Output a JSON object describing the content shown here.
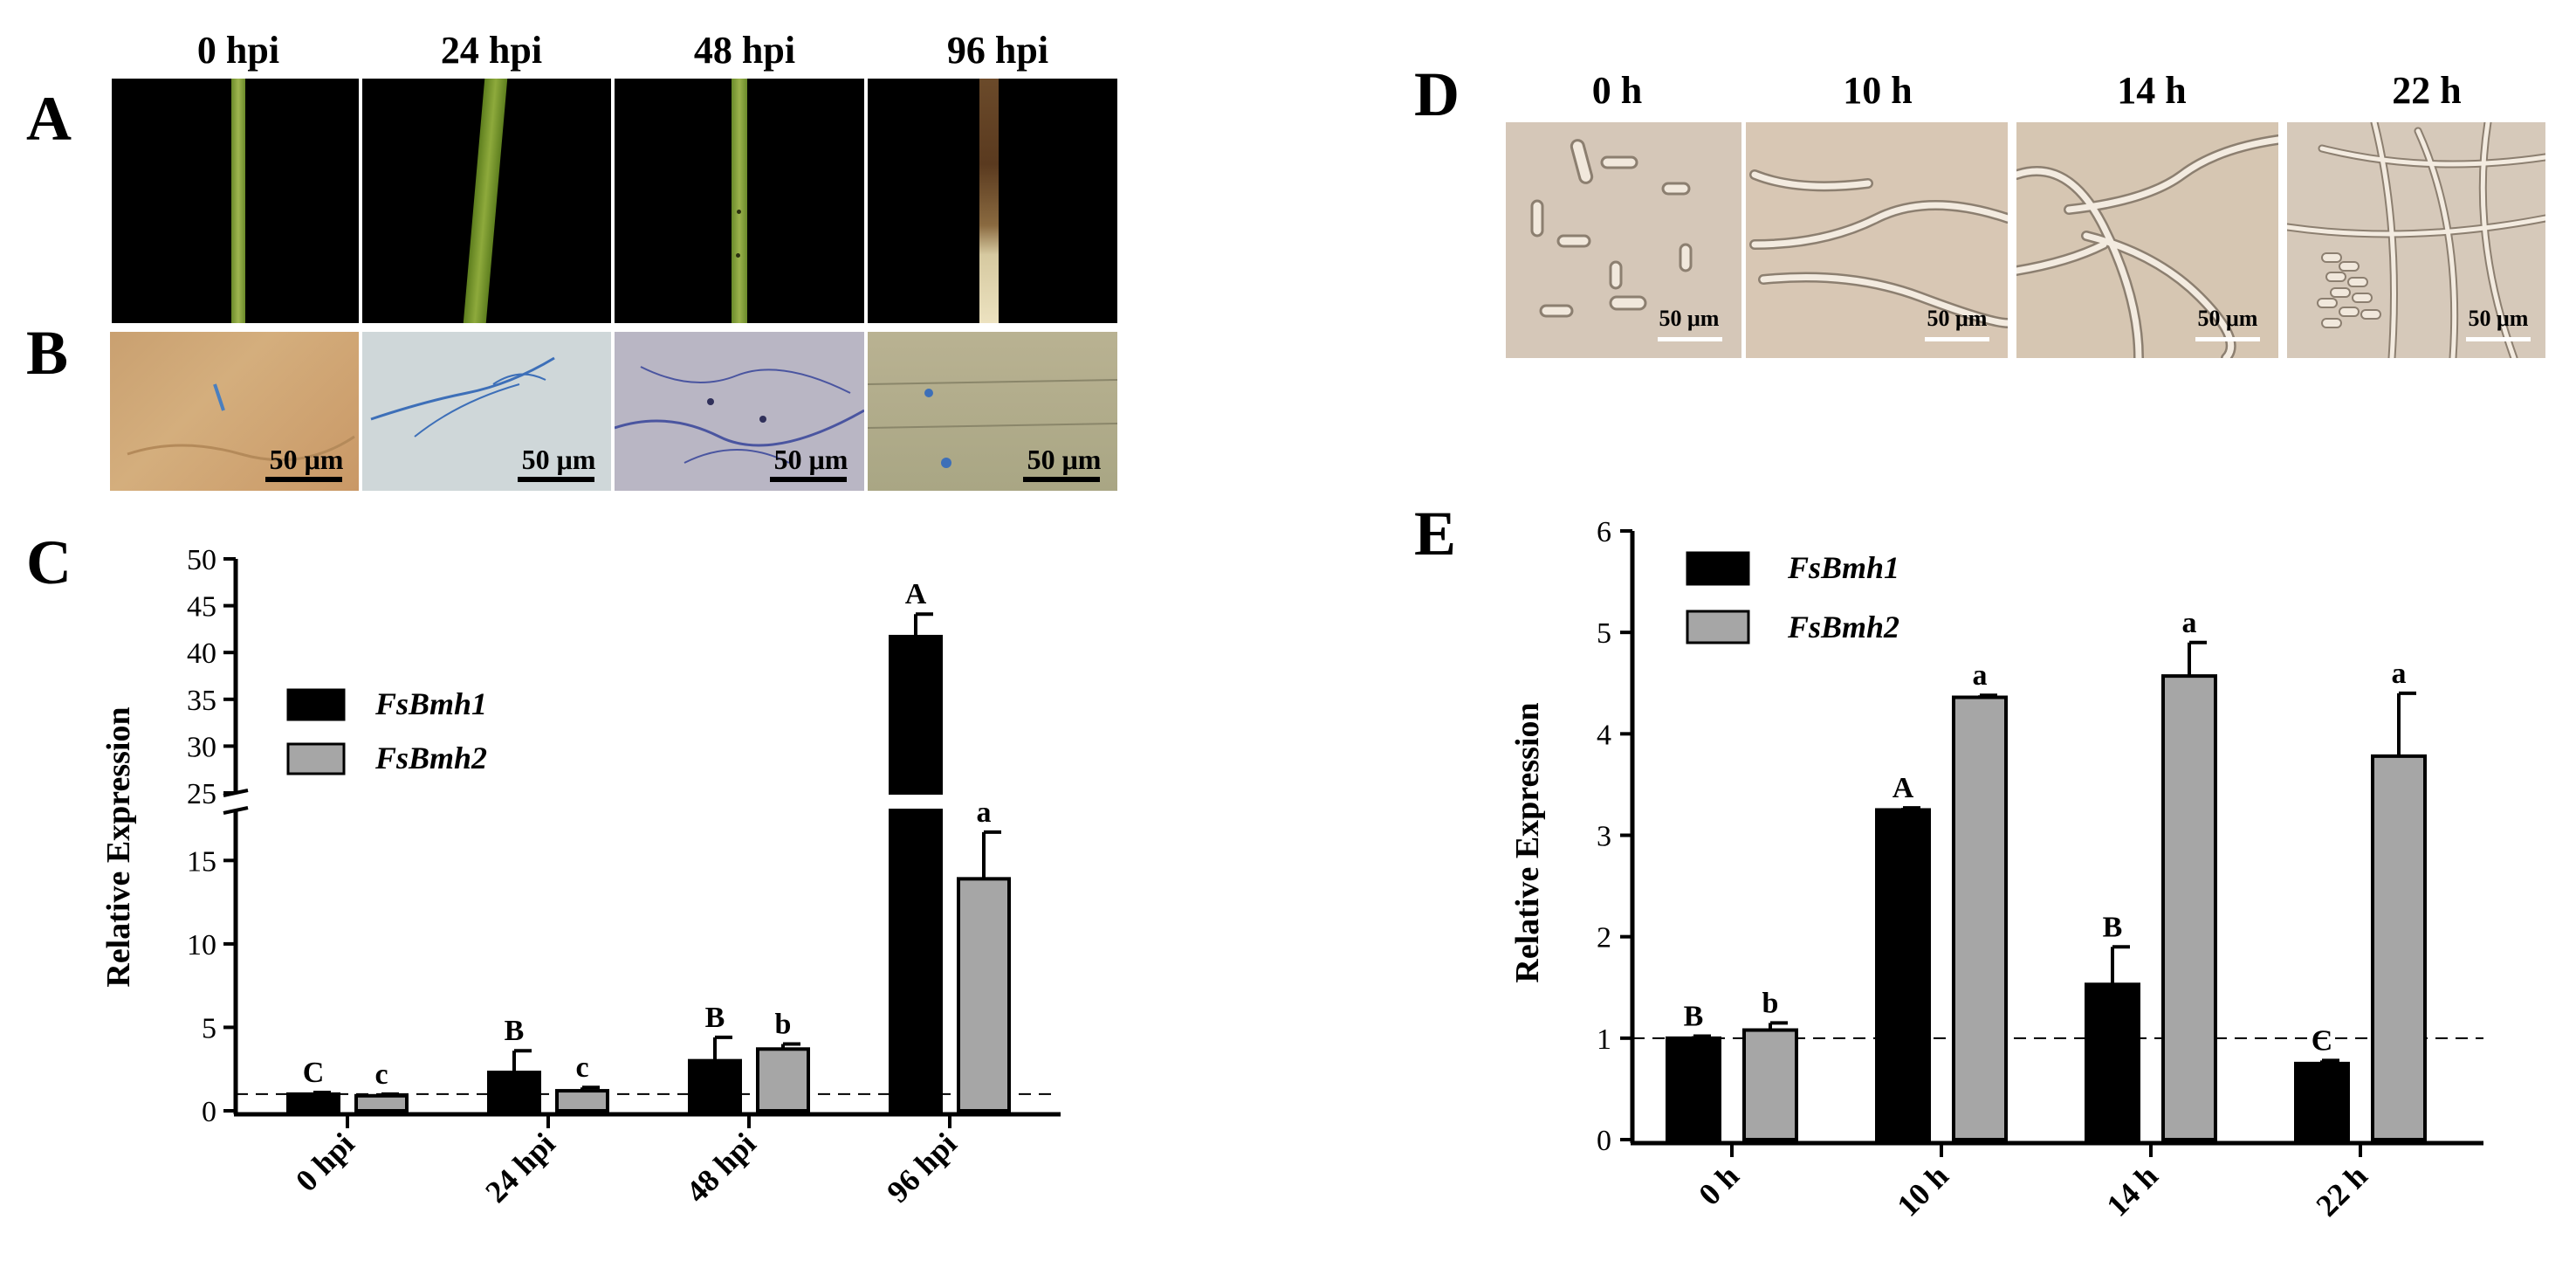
{
  "panel_labels": {
    "A": "A",
    "B": "B",
    "C": "C",
    "D": "D",
    "E": "E"
  },
  "left_timepoints": [
    "0 hpi",
    "24 hpi",
    "48 hpi",
    "96 hpi"
  ],
  "right_timepoints": [
    "0 h",
    "10 h",
    "14 h",
    "22 h"
  ],
  "scale_bar_label": "50 μm",
  "colors": {
    "fsbmh1": "#000000",
    "fsbmh2": "#a6a6a6",
    "stain_blue": "#3d6fb8",
    "leaf_green": "#7f9a2c"
  },
  "chart_data": [
    {
      "type": "bar",
      "panel": "C",
      "ylabel": "Relative Expression",
      "categories": [
        "0 hpi",
        "24 hpi",
        "48 hpi",
        "96 hpi"
      ],
      "ylim_lower": [
        0,
        18
      ],
      "ylim_upper": [
        25,
        50
      ],
      "yticks_lower": [
        "0",
        "5",
        "10",
        "15"
      ],
      "yticks_upper": [
        "25",
        "30",
        "35",
        "40",
        "45",
        "50"
      ],
      "axis_break": true,
      "reference_line": 1,
      "legend_position": "top-left",
      "series": [
        {
          "name": "FsBmh1",
          "values": [
            1.0,
            2.3,
            3.0,
            41.7
          ],
          "errors": [
            0.1,
            1.3,
            1.4,
            2.4
          ],
          "letters": [
            "C",
            "B",
            "B",
            "A"
          ]
        },
        {
          "name": "FsBmh2",
          "values": [
            0.9,
            1.2,
            3.7,
            13.9
          ],
          "errors": [
            0.1,
            0.2,
            0.3,
            2.8
          ],
          "letters": [
            "c",
            "c",
            "b",
            "a"
          ]
        }
      ]
    },
    {
      "type": "bar",
      "panel": "E",
      "ylabel": "Relative Expression",
      "categories": [
        "0 h",
        "10 h",
        "14 h",
        "22 h"
      ],
      "ylim": [
        0,
        6
      ],
      "yticks": [
        "0",
        "1",
        "2",
        "3",
        "4",
        "5",
        "6"
      ],
      "reference_line": 1,
      "legend_position": "top-left",
      "series": [
        {
          "name": "FsBmh1",
          "values": [
            1.0,
            3.25,
            1.53,
            0.75
          ],
          "errors": [
            0.02,
            0.02,
            0.37,
            0.03
          ],
          "letters": [
            "B",
            "A",
            "B",
            "C"
          ]
        },
        {
          "name": "FsBmh2",
          "values": [
            1.08,
            4.36,
            4.57,
            3.78
          ],
          "errors": [
            0.07,
            0.02,
            0.33,
            0.62
          ],
          "letters": [
            "b",
            "a",
            "a",
            "a"
          ]
        }
      ]
    }
  ]
}
